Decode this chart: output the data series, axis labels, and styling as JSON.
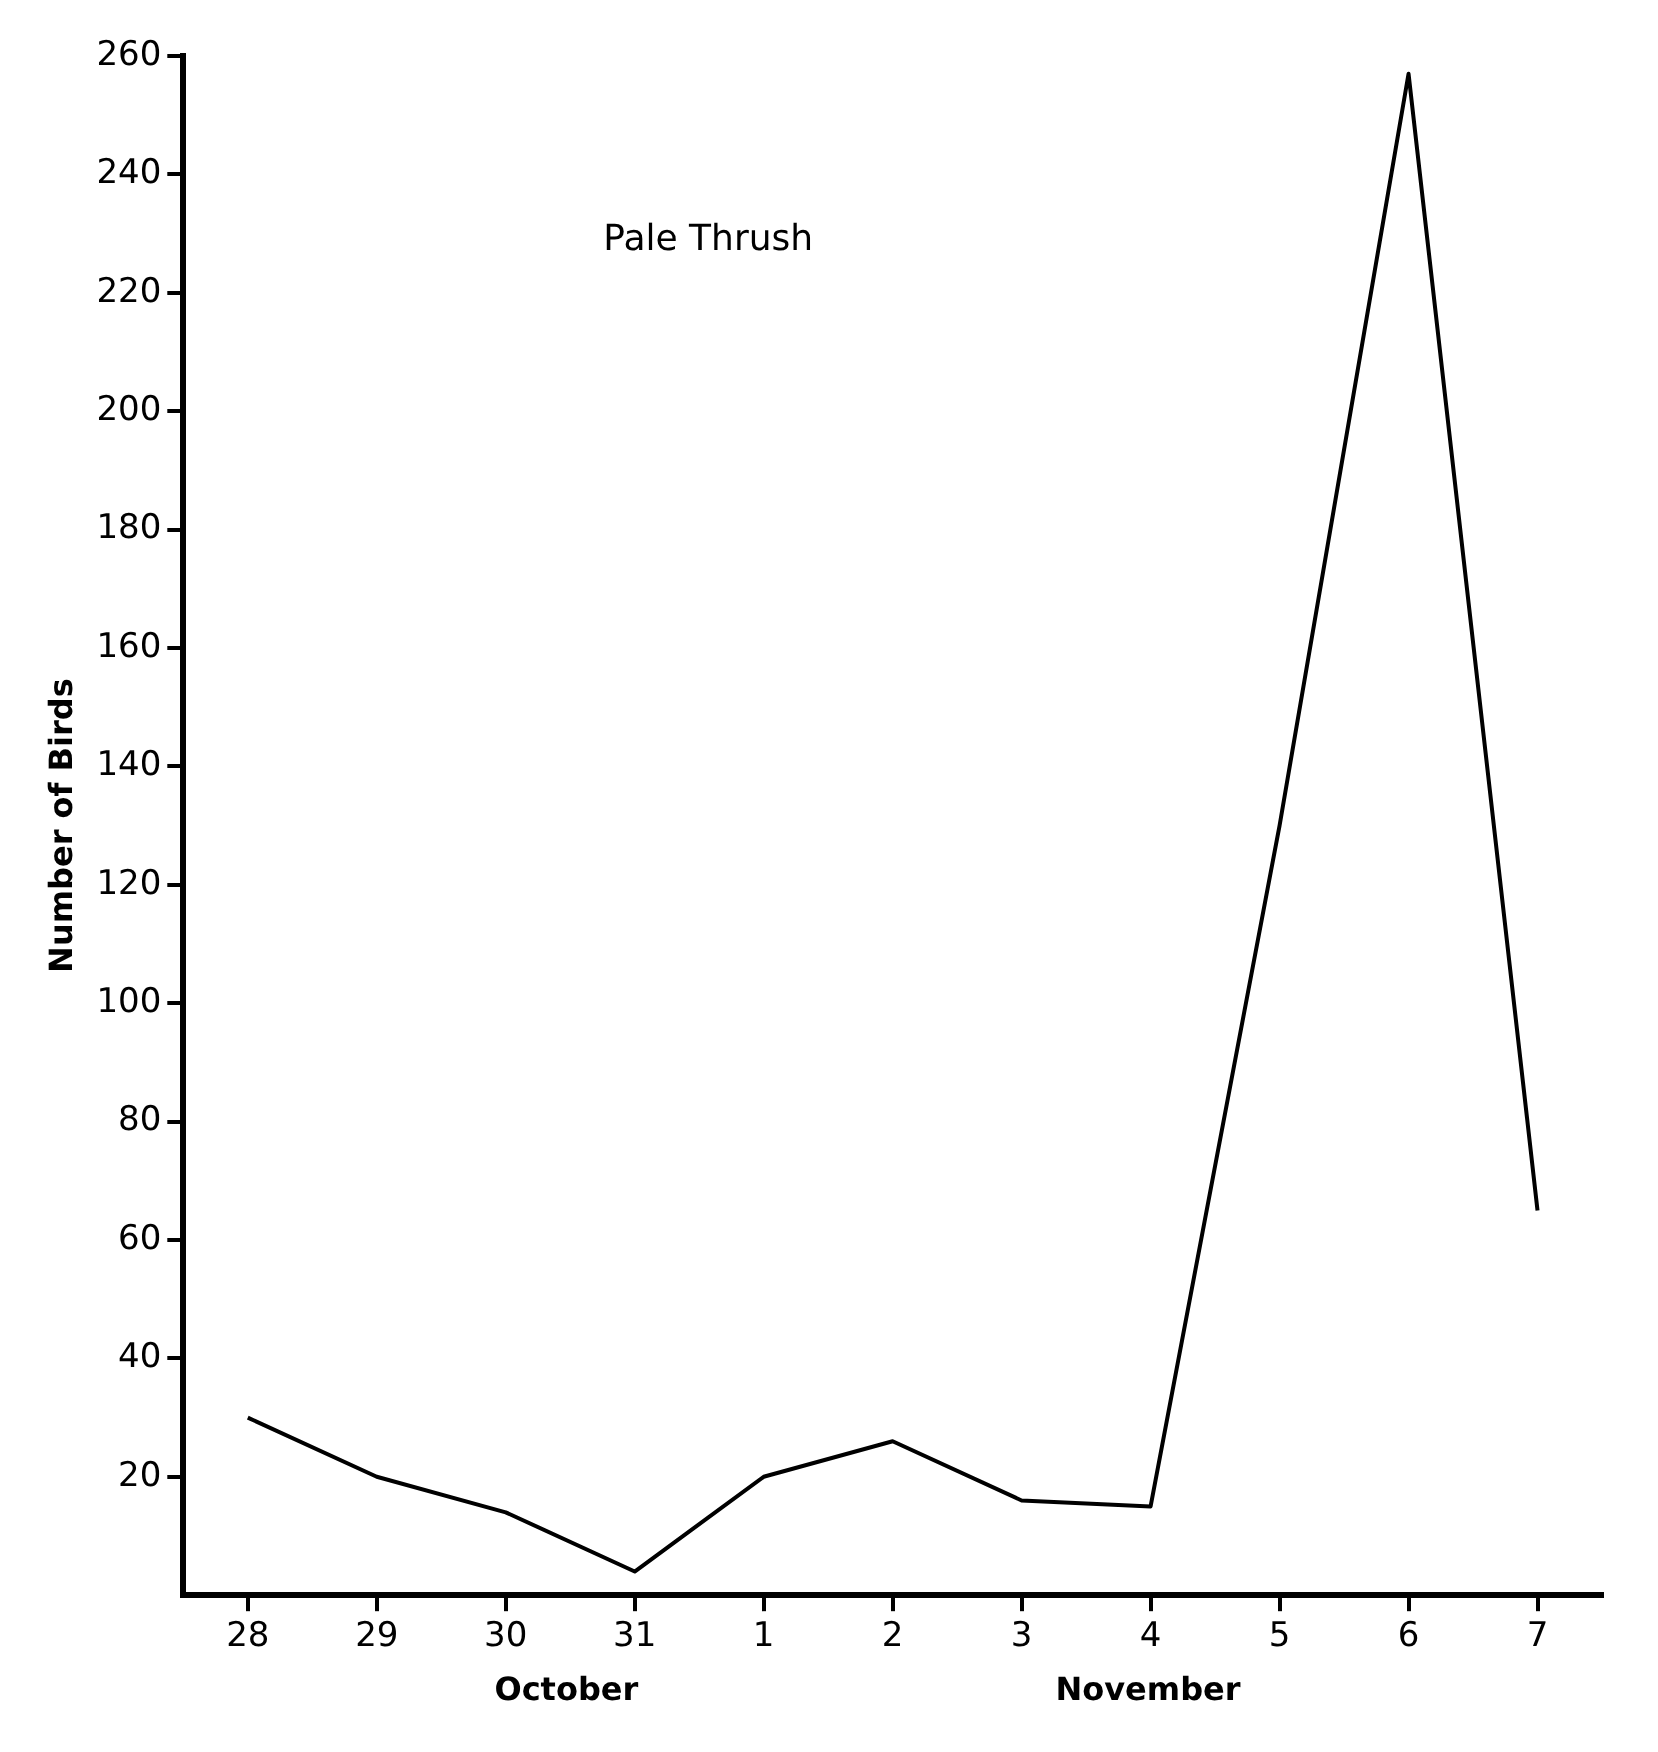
{
  "chart_data": {
    "type": "line",
    "title": "Pale Thrush",
    "ylabel": "Number of Birds",
    "categories": [
      "28",
      "29",
      "30",
      "31",
      "1",
      "2",
      "3",
      "4",
      "5",
      "6",
      "7"
    ],
    "series": [
      {
        "color": "#000000",
        "values": [
          30,
          20,
          14,
          4,
          20,
          26,
          16,
          15,
          130,
          257,
          65
        ]
      }
    ],
    "ylim": [
      0,
      260
    ],
    "yticks": [
      20,
      40,
      60,
      80,
      100,
      120,
      140,
      160,
      180,
      200,
      220,
      240,
      260
    ],
    "grid": false,
    "legend": false,
    "marker": "none",
    "line_style": "solid",
    "annotations": [
      "October",
      "November"
    ]
  }
}
